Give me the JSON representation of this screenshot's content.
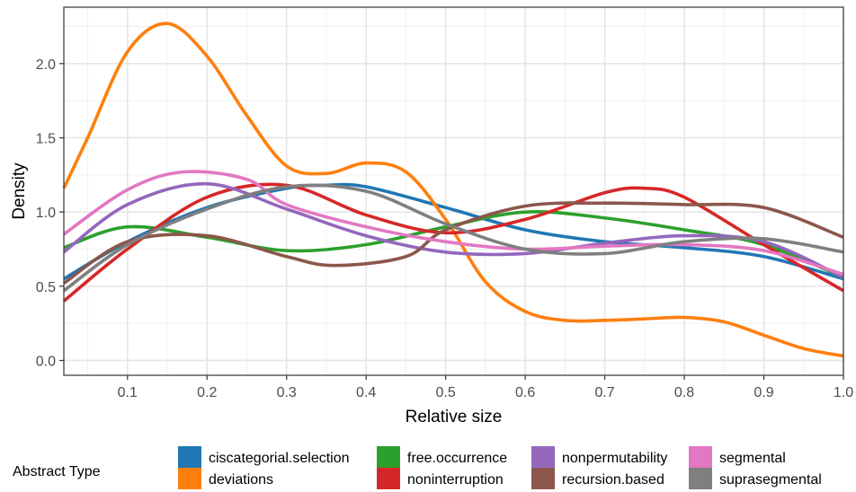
{
  "chart_data": {
    "type": "line",
    "title": "",
    "xlabel": "Relative size",
    "ylabel": "Density",
    "xlim": [
      0.02,
      1.0
    ],
    "ylim": [
      -0.1,
      2.38
    ],
    "x_ticks": [
      0.1,
      0.2,
      0.3,
      0.4,
      0.5,
      0.6,
      0.7,
      0.8,
      0.9,
      1.0
    ],
    "x_tick_labels": [
      "0.1",
      "0.2",
      "0.3",
      "0.4",
      "0.5",
      "0.6",
      "0.7",
      "0.8",
      "0.9",
      "1.0"
    ],
    "y_ticks": [
      0.0,
      0.5,
      1.0,
      1.5,
      2.0
    ],
    "y_tick_labels": [
      "0.0",
      "0.5",
      "1.0",
      "1.5",
      "2.0"
    ],
    "grid": true,
    "legend_position": "bottom",
    "legend_title": "Abstract Type",
    "series": [
      {
        "name": "ciscategorial.selection",
        "color": "#1F77B4",
        "points": [
          [
            0.02,
            0.55
          ],
          [
            0.1,
            0.8
          ],
          [
            0.2,
            1.03
          ],
          [
            0.3,
            1.16
          ],
          [
            0.35,
            1.18
          ],
          [
            0.4,
            1.17
          ],
          [
            0.5,
            1.03
          ],
          [
            0.6,
            0.88
          ],
          [
            0.7,
            0.8
          ],
          [
            0.8,
            0.76
          ],
          [
            0.9,
            0.7
          ],
          [
            1.0,
            0.55
          ]
        ]
      },
      {
        "name": "deviations",
        "color": "#FF7F0E",
        "points": [
          [
            0.02,
            1.16
          ],
          [
            0.05,
            1.5
          ],
          [
            0.1,
            2.08
          ],
          [
            0.15,
            2.27
          ],
          [
            0.2,
            2.05
          ],
          [
            0.25,
            1.65
          ],
          [
            0.3,
            1.31
          ],
          [
            0.35,
            1.26
          ],
          [
            0.4,
            1.33
          ],
          [
            0.45,
            1.27
          ],
          [
            0.5,
            0.95
          ],
          [
            0.55,
            0.53
          ],
          [
            0.6,
            0.33
          ],
          [
            0.65,
            0.27
          ],
          [
            0.7,
            0.27
          ],
          [
            0.75,
            0.28
          ],
          [
            0.8,
            0.29
          ],
          [
            0.85,
            0.26
          ],
          [
            0.9,
            0.17
          ],
          [
            0.95,
            0.08
          ],
          [
            1.0,
            0.03
          ]
        ]
      },
      {
        "name": "free.occurrence",
        "color": "#2CA02C",
        "points": [
          [
            0.02,
            0.76
          ],
          [
            0.1,
            0.9
          ],
          [
            0.2,
            0.83
          ],
          [
            0.3,
            0.74
          ],
          [
            0.4,
            0.78
          ],
          [
            0.5,
            0.9
          ],
          [
            0.6,
            1.0
          ],
          [
            0.7,
            0.96
          ],
          [
            0.8,
            0.88
          ],
          [
            0.9,
            0.78
          ],
          [
            1.0,
            0.56
          ]
        ]
      },
      {
        "name": "noninterruption",
        "color": "#D62728",
        "points": [
          [
            0.02,
            0.4
          ],
          [
            0.1,
            0.75
          ],
          [
            0.2,
            1.1
          ],
          [
            0.3,
            1.18
          ],
          [
            0.4,
            0.98
          ],
          [
            0.5,
            0.86
          ],
          [
            0.6,
            0.95
          ],
          [
            0.7,
            1.13
          ],
          [
            0.75,
            1.16
          ],
          [
            0.8,
            1.1
          ],
          [
            0.9,
            0.78
          ],
          [
            1.0,
            0.47
          ]
        ]
      },
      {
        "name": "nonpermutability",
        "color": "#9467BD",
        "points": [
          [
            0.02,
            0.73
          ],
          [
            0.1,
            1.05
          ],
          [
            0.2,
            1.19
          ],
          [
            0.3,
            1.02
          ],
          [
            0.4,
            0.84
          ],
          [
            0.5,
            0.73
          ],
          [
            0.6,
            0.72
          ],
          [
            0.7,
            0.79
          ],
          [
            0.8,
            0.84
          ],
          [
            0.9,
            0.8
          ],
          [
            1.0,
            0.56
          ]
        ]
      },
      {
        "name": "recursion.based",
        "color": "#8C564B",
        "points": [
          [
            0.02,
            0.52
          ],
          [
            0.1,
            0.8
          ],
          [
            0.2,
            0.84
          ],
          [
            0.3,
            0.7
          ],
          [
            0.36,
            0.64
          ],
          [
            0.45,
            0.7
          ],
          [
            0.5,
            0.88
          ],
          [
            0.6,
            1.04
          ],
          [
            0.7,
            1.06
          ],
          [
            0.8,
            1.05
          ],
          [
            0.9,
            1.03
          ],
          [
            1.0,
            0.83
          ]
        ]
      },
      {
        "name": "segmental",
        "color": "#E377C2",
        "points": [
          [
            0.02,
            0.85
          ],
          [
            0.1,
            1.15
          ],
          [
            0.17,
            1.27
          ],
          [
            0.25,
            1.22
          ],
          [
            0.3,
            1.05
          ],
          [
            0.4,
            0.9
          ],
          [
            0.5,
            0.8
          ],
          [
            0.6,
            0.75
          ],
          [
            0.7,
            0.77
          ],
          [
            0.8,
            0.78
          ],
          [
            0.9,
            0.74
          ],
          [
            1.0,
            0.58
          ]
        ]
      },
      {
        "name": "suprasegmental",
        "color": "#7F7F7F",
        "points": [
          [
            0.02,
            0.47
          ],
          [
            0.1,
            0.78
          ],
          [
            0.2,
            1.02
          ],
          [
            0.3,
            1.17
          ],
          [
            0.4,
            1.14
          ],
          [
            0.5,
            0.92
          ],
          [
            0.6,
            0.75
          ],
          [
            0.7,
            0.72
          ],
          [
            0.8,
            0.8
          ],
          [
            0.9,
            0.82
          ],
          [
            1.0,
            0.73
          ]
        ]
      }
    ]
  }
}
